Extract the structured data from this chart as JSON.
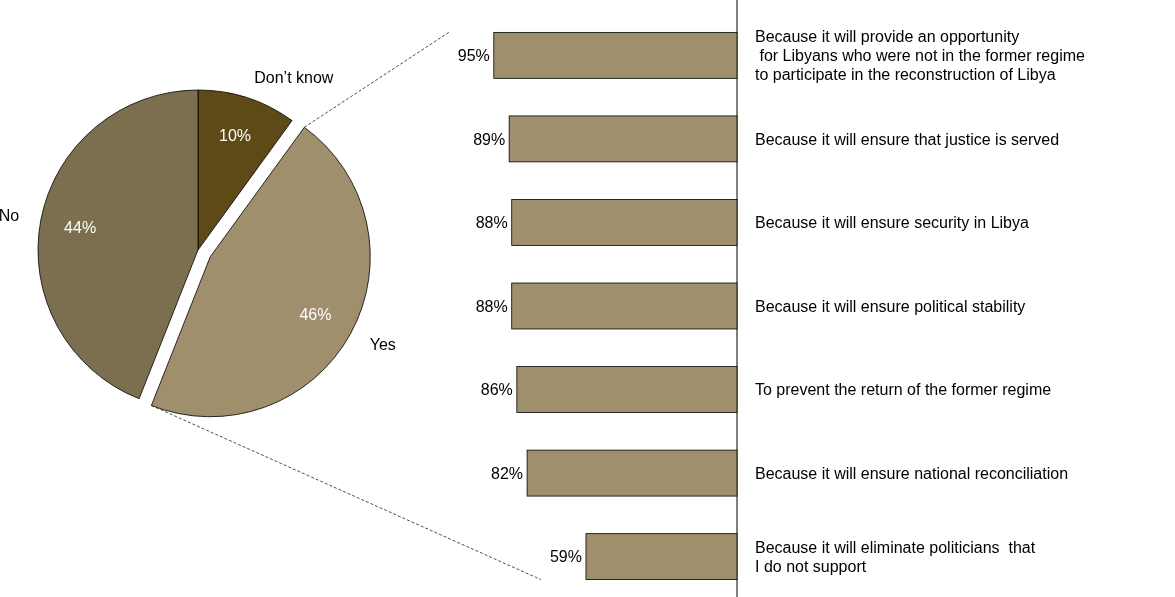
{
  "chart_data": [
    {
      "type": "pie",
      "categories": [
        "Don’t know",
        "Yes",
        "No"
      ],
      "values": [
        10,
        46,
        44
      ],
      "colors": [
        "#5e4a17",
        "#a08f6c",
        "#7c6f4f"
      ],
      "value_labels": [
        "10%",
        "46%",
        "44%"
      ]
    },
    {
      "type": "bar",
      "orientation": "horizontal",
      "categories": [
        "Because it will provide an opportunity\n for Libyans who were not in the former regime\nto participate in the reconstruction of Libya",
        "Because it will ensure that justice is served",
        "Because it will ensure security in Libya",
        "Because it will ensure political stability",
        "To prevent the return of the former regime",
        "Because it will ensure national reconciliation",
        "Because it will eliminate politicians  that\nI do not support"
      ],
      "values": [
        95,
        89,
        88,
        88,
        86,
        82,
        59
      ],
      "color": "#a08f6c",
      "value_labels": [
        "95%",
        "89%",
        "88%",
        "88%",
        "86%",
        "82%",
        "59%"
      ]
    }
  ]
}
